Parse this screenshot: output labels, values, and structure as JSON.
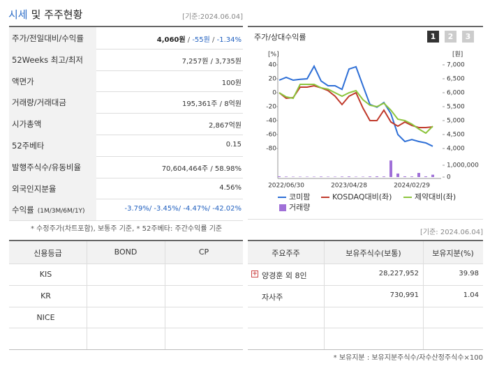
{
  "header": {
    "title_highlight": "시세",
    "title_rest": "및 주주현황",
    "date": "[기준:2024.06.04]"
  },
  "price_table": {
    "rows": [
      {
        "label": "주가/전일대비/수익률",
        "value": [
          {
            "text": "4,060원",
            "color": "#222222"
          },
          {
            "text": " / ",
            "color": "#555555"
          },
          {
            "text": "-55원",
            "color": "#1f5fbf"
          },
          {
            "text": " / ",
            "color": "#555555"
          },
          {
            "text": "-1.34%",
            "color": "#1f5fbf"
          }
        ]
      },
      {
        "label": "52Weeks 최고/최저",
        "value": [
          {
            "text": "7,257원 / 3,735원",
            "color": "#333333"
          }
        ]
      },
      {
        "label": "액면가",
        "value": [
          {
            "text": "100원",
            "color": "#333333"
          }
        ]
      },
      {
        "label": "거래량/거래대금",
        "value": [
          {
            "text": "195,361주 / 8억원",
            "color": "#333333"
          }
        ]
      },
      {
        "label": "시가총액",
        "value": [
          {
            "text": "2,867억원",
            "color": "#333333"
          }
        ]
      },
      {
        "label": "52주베타",
        "value": [
          {
            "text": "0.15",
            "color": "#333333"
          }
        ]
      },
      {
        "label": "발행주식수/유동비율",
        "value": [
          {
            "text": "70,604,464주 / 58.98%",
            "color": "#333333"
          }
        ]
      },
      {
        "label": "외국인지분율",
        "value": [
          {
            "text": "4.56%",
            "color": "#333333"
          }
        ]
      },
      {
        "label": "수익률",
        "label_note": "(1M/3M/6M/1Y)",
        "value": [
          {
            "text": "-3.79%/ -3.45%/ -4.47%/ -42.02%",
            "color": "#1f5fbf"
          }
        ]
      }
    ]
  },
  "price_note": "* 수정주가(차트포함), 보통주 기준, * 52주베타: 주간수익률 기준",
  "chart_panel": {
    "title": "주가/상대수익률",
    "tabs": [
      "1",
      "2",
      "3"
    ]
  },
  "chart_data": {
    "type": "line",
    "y_unit": "[%]",
    "y2_unit": "[원]",
    "categories": [
      null,
      "2022/06/30",
      null,
      null,
      null,
      null,
      null,
      null,
      null,
      null,
      "2023/04/28",
      null,
      null,
      null,
      null,
      null,
      null,
      null,
      null,
      "2024/02/29",
      null,
      null,
      null
    ],
    "ylim": [
      -80,
      40
    ],
    "yticks": [
      40,
      20,
      0,
      -20,
      -40,
      -60,
      -80
    ],
    "y2lim": [
      4000,
      7000
    ],
    "y2ticks": [
      {
        "value": 7000,
        "label": "7,000"
      },
      {
        "value": 6500,
        "label": "6,500"
      },
      {
        "value": 6000,
        "label": "6,000"
      },
      {
        "value": 5500,
        "label": "5,500"
      },
      {
        "value": 5000,
        "label": "5,000"
      },
      {
        "value": 4500,
        "label": "4,500"
      },
      {
        "value": 4000,
        "label": "4,000"
      }
    ],
    "y3lim": [
      0,
      1500000
    ],
    "y3ticks": [
      {
        "value": 1000000,
        "label": "1,000,000"
      },
      0
    ],
    "series": [
      {
        "name": "코미팜",
        "color": "#2e6fd6",
        "axis": "y2",
        "values": [
          6450,
          6550,
          6450,
          6480,
          6500,
          6950,
          6420,
          6250,
          6250,
          6120,
          6850,
          6930,
          6250,
          5580,
          5480,
          5650,
          5250,
          4500,
          4250,
          4320,
          4250,
          4200,
          4080
        ]
      },
      {
        "name": "KOSDAQ대비(좌)",
        "color": "#c0392b",
        "values": [
          0,
          -8,
          -7,
          8,
          8,
          10,
          7,
          3,
          -5,
          -17,
          -5,
          0,
          -22,
          -40,
          -40,
          -25,
          -42,
          -48,
          -42,
          -47,
          -50,
          -50,
          -49
        ]
      },
      {
        "name": "제약대비(좌)",
        "color": "#8cc43c",
        "values": [
          0,
          -6,
          -8,
          12,
          12,
          12,
          7,
          5,
          0,
          -5,
          0,
          3,
          -10,
          -18,
          -20,
          -15,
          -25,
          -38,
          -40,
          -45,
          -52,
          -58,
          -48
        ]
      },
      {
        "name": "거래량",
        "color": "#a070d8",
        "axis": "y3",
        "type": "bar",
        "values": [
          60000,
          40000,
          30000,
          30000,
          30000,
          30000,
          40000,
          30000,
          30000,
          40000,
          50000,
          30000,
          30000,
          50000,
          60000,
          50000,
          1400000,
          300000,
          60000,
          50000,
          350000,
          60000,
          200000
        ]
      }
    ]
  },
  "holders_date": "[기준: 2024.06.04]",
  "credit_table": {
    "columns": [
      "신용등급",
      "BOND",
      "CP"
    ],
    "rows": [
      [
        "KIS"
      ],
      [
        "KR"
      ],
      [
        "NICE"
      ]
    ]
  },
  "holders_table": {
    "columns": [
      "주요주주",
      "보유주식수(보통)",
      "보유지분(%)"
    ],
    "rows": [
      [
        "양경훈 외 8인",
        "28,227,952",
        "39.98"
      ],
      [
        "자사주",
        "730,991",
        "1.04"
      ]
    ]
  },
  "holders_note": "* 보유지분 : 보유지분주식수/자수산정주식수×100"
}
